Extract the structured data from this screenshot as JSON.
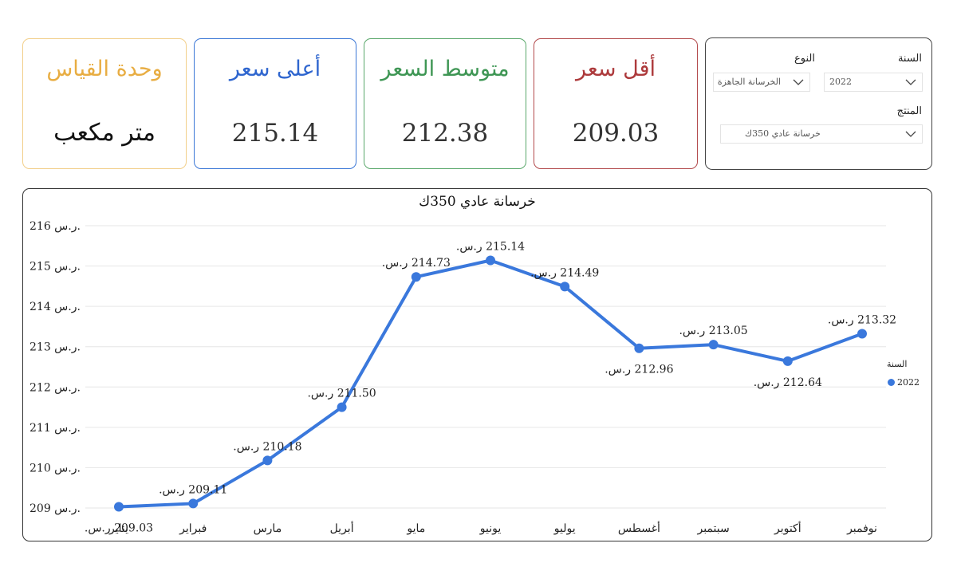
{
  "cards": {
    "unit": {
      "title": "وحدة القياس",
      "value": "متر مكعب"
    },
    "max": {
      "title": "أعلى سعر",
      "value": "215.14"
    },
    "avg": {
      "title": "متوسط السعر",
      "value": "212.38"
    },
    "min": {
      "title": "أقل سعر",
      "value": "209.03"
    }
  },
  "filters": {
    "year_label": "السنة",
    "year_value": "2022",
    "type_label": "النوع",
    "type_value": "الخرسانة الجاهزة",
    "product_label": "المنتج",
    "product_value": "خرسانة عادي 350ك"
  },
  "colors": {
    "unit": "#e8ad42",
    "max": "#2f66cf",
    "avg": "#3e9654",
    "min": "#ad3a3c",
    "series": "#3a78dc"
  },
  "chart_data": {
    "type": "line",
    "title": "خرسانة عادي 350ك",
    "categories": [
      "يناير",
      "فبراير",
      "مارس",
      "أبريل",
      "مايو",
      "يونيو",
      "يوليو",
      "أغسطس",
      "سبتمبر",
      "أكتوبر",
      "نوفمبر"
    ],
    "series": [
      {
        "name": "2022",
        "values": [
          209.03,
          209.11,
          210.18,
          211.5,
          214.73,
          215.14,
          214.49,
          212.96,
          213.05,
          212.64,
          213.32
        ]
      }
    ],
    "data_labels": [
      "209.03 ر.س.",
      "209.11 ر.س.",
      "210.18 ر.س.",
      "211.50 ر.س.",
      "214.73 ر.س.",
      "215.14 ر.س.",
      "214.49 ر.س.",
      "212.96 ر.س.",
      "213.05 ر.س.",
      "212.64 ر.س.",
      "213.32 ر.س."
    ],
    "y_ticks": [
      "209 ر.س.",
      "210 ر.س.",
      "211 ر.س.",
      "212 ر.س.",
      "213 ر.س.",
      "214 ر.س.",
      "215 ر.س.",
      "216 ر.س."
    ],
    "ylim": [
      209,
      216
    ],
    "legend_title": "السنة",
    "legend_position": "right",
    "grid": true
  }
}
